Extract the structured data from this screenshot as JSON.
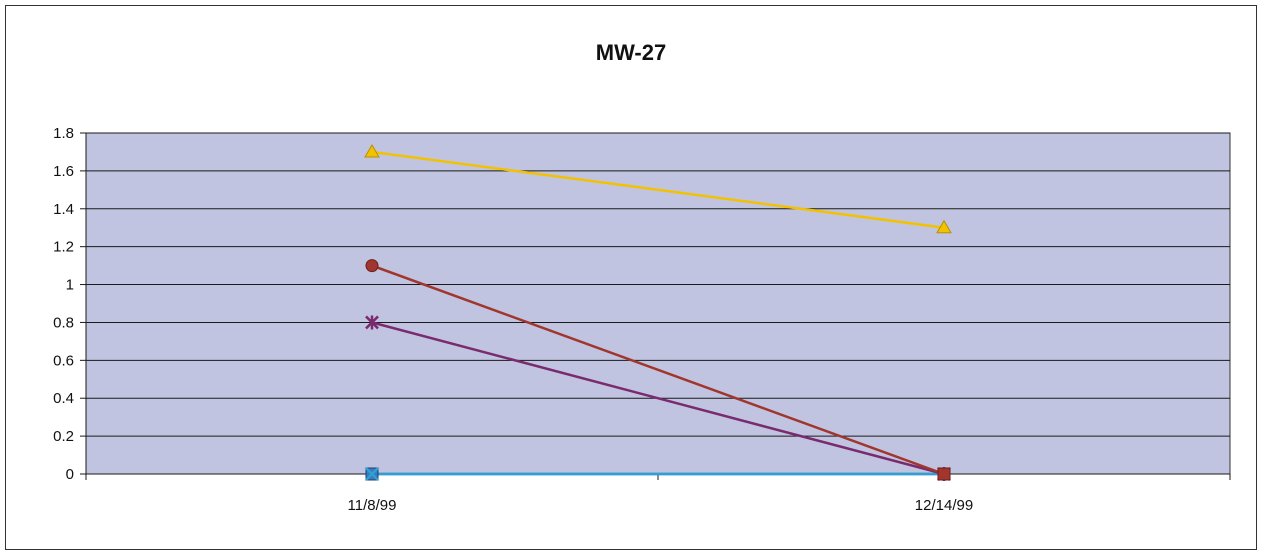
{
  "chart_data": {
    "type": "line",
    "title": "MW-27",
    "xlabel": "",
    "ylabel": "",
    "categories": [
      "11/8/99",
      "12/14/99"
    ],
    "ylim": [
      0,
      1.8
    ],
    "yticks": [
      "0",
      "0.2",
      "0.4",
      "0.6",
      "0.8",
      "1",
      "1.2",
      "1.4",
      "1.6",
      "1.8"
    ],
    "grid": true,
    "legend": "none",
    "plot_background": "#c0c4e0",
    "series": [
      {
        "values": [
          1.7,
          1.3
        ],
        "color": "#f2c200",
        "marker": "triangle"
      },
      {
        "values": [
          1.1,
          0
        ],
        "color": "#a0362e",
        "marker": "circle"
      },
      {
        "values": [
          0.8,
          0
        ],
        "color": "#7a2a6e",
        "marker": "asterisk"
      },
      {
        "values": [
          0,
          0
        ],
        "color": "#2fa0d0",
        "marker": "x"
      },
      {
        "values": [
          0,
          0
        ],
        "color": "#3a7ac0",
        "marker": "square"
      }
    ]
  }
}
